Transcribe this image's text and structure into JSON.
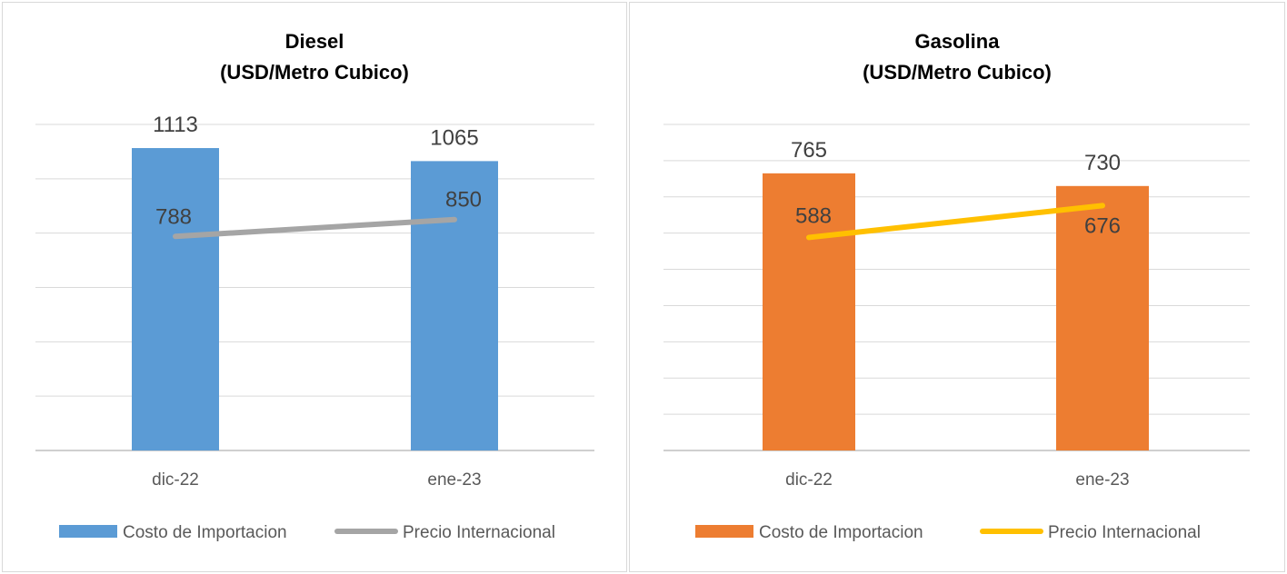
{
  "chart_data": [
    {
      "type": "bar+line",
      "title": [
        "Diesel",
        "(USD/Metro Cubico)"
      ],
      "categories": [
        "dic-22",
        "ene-23"
      ],
      "series": [
        {
          "name": "Costo de Importacion",
          "type": "bar",
          "values": [
            1113,
            1065
          ],
          "color": "#5b9bd5"
        },
        {
          "name": "Precio Internacional",
          "type": "line",
          "values": [
            788,
            850
          ],
          "color": "#a5a5a5"
        }
      ],
      "ylim": [
        0,
        1200
      ],
      "grid_step": 200,
      "grid": true,
      "legend": "bottom"
    },
    {
      "type": "bar+line",
      "title": [
        "Gasolina",
        "(USD/Metro Cubico)"
      ],
      "categories": [
        "dic-22",
        "ene-23"
      ],
      "series": [
        {
          "name": "Costo de Importacion",
          "type": "bar",
          "values": [
            765,
            730
          ],
          "color": "#ed7d31"
        },
        {
          "name": "Precio Internacional",
          "type": "line",
          "values": [
            588,
            676
          ],
          "color": "#ffc000"
        }
      ],
      "ylim": [
        0,
        900
      ],
      "grid_step": 100,
      "grid": true,
      "legend": "bottom"
    }
  ]
}
